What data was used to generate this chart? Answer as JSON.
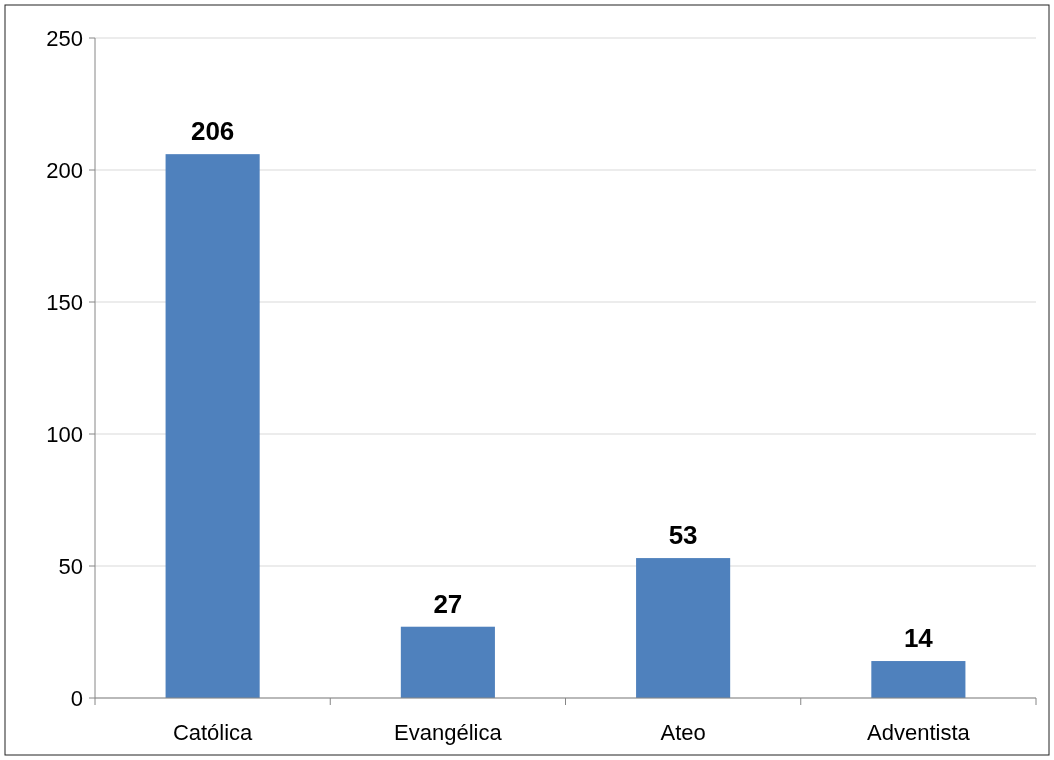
{
  "chart_data": {
    "type": "bar",
    "categories": [
      "Católica",
      "Evangélica",
      "Ateo",
      "Adventista"
    ],
    "values": [
      206,
      27,
      53,
      14
    ],
    "color": "#4f81bd",
    "ylim": [
      0,
      250
    ],
    "yticks": [
      0,
      50,
      100,
      150,
      200,
      250
    ],
    "grid": "y",
    "data_labels": true
  }
}
